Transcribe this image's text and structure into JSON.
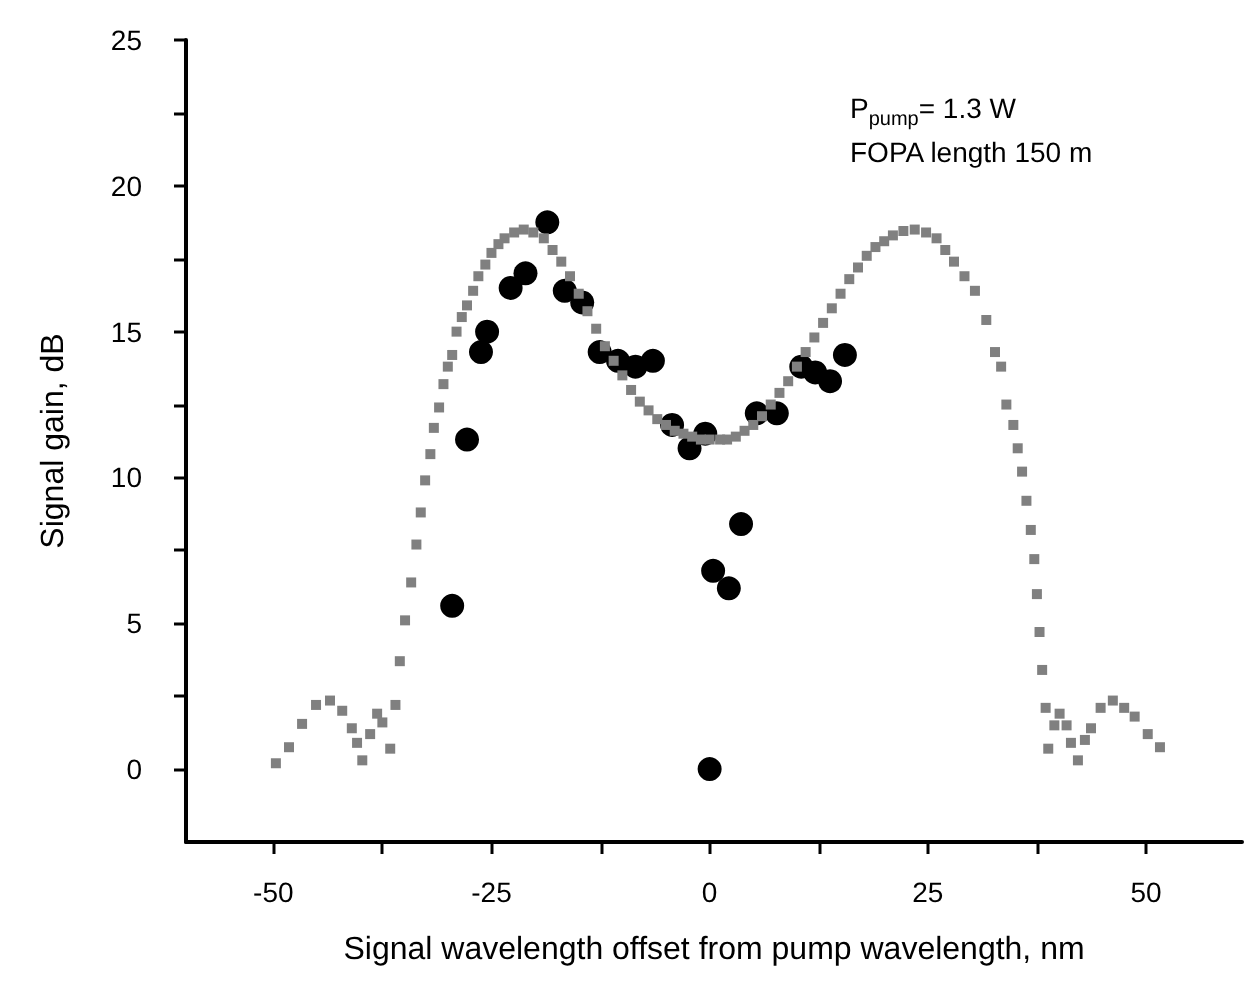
{
  "chart_data": {
    "type": "scatter",
    "xlabel": "Signal wavelength offset from pump wavelength, nm",
    "ylabel": "Signal gain, dB",
    "annotations": [
      "P$_{pump}$= 1.3 W",
      "FOPA length 150 m"
    ],
    "xlim": [
      -60,
      61
    ],
    "ylim": [
      -2.5,
      25
    ],
    "xticks": [
      -50,
      {
        "value": -37.5,
        "label": null
      },
      -25,
      {
        "value": -12.5,
        "label": null
      },
      0,
      {
        "value": 12.5,
        "label": null
      },
      25,
      {
        "value": 37.5,
        "label": null
      },
      50
    ],
    "yticks": [
      0,
      {
        "value": 2.5,
        "label": null
      },
      5,
      {
        "value": 7.5,
        "label": null
      },
      10,
      {
        "value": 12.5,
        "label": null
      },
      15,
      {
        "value": 17.5,
        "label": null
      },
      20,
      {
        "value": 22.5,
        "label": null
      },
      25
    ],
    "grid": false,
    "series": [
      {
        "color": "#808080",
        "marker": "square",
        "x": [
          -49.7,
          -48.2,
          -46.7,
          -45.1,
          -43.5,
          -42.1,
          -41.0,
          -40.4,
          -39.8,
          -38.9,
          -38.1,
          -37.5,
          -36.6,
          -36.0,
          -35.5,
          -34.9,
          -34.2,
          -33.6,
          -33.1,
          -32.6,
          -32.0,
          -31.6,
          -31.0,
          -30.5,
          -30.0,
          -29.5,
          -29.0,
          -28.4,
          -27.8,
          -27.1,
          -26.5,
          -25.7,
          -25.0,
          -24.2,
          -23.5,
          -22.4,
          -21.3,
          -20.2,
          -19.0,
          -18.0,
          -17.0,
          -16.0,
          -15.0,
          -14.0,
          -13.0,
          -12.0,
          -11.0,
          -10.0,
          -9.0,
          -8.0,
          -7.0,
          -6.0,
          -5.0,
          -4.0,
          -3.0,
          -2.0,
          -1.0,
          0.0,
          1.2,
          2.0,
          3.0,
          4.0,
          5.0,
          6.0,
          7.0,
          8.0,
          9.0,
          10.0,
          11.0,
          12.0,
          13.0,
          14.0,
          15.0,
          16.0,
          17.0,
          18.0,
          19.0,
          20.0,
          21.0,
          22.2,
          23.5,
          24.8,
          26.0,
          27.0,
          28.0,
          29.2,
          30.4,
          31.7,
          32.7,
          33.4,
          34.0,
          34.8,
          35.3,
          35.8,
          36.3,
          36.8,
          37.2,
          37.5,
          37.8,
          38.1,
          38.5,
          38.8,
          39.5,
          40.1,
          40.9,
          41.4,
          42.2,
          43.0,
          43.7,
          44.8,
          46.2,
          47.5,
          48.7,
          50.2,
          51.6
        ],
        "values": [
          0.2,
          0.75,
          1.55,
          2.2,
          2.35,
          2.0,
          1.4,
          0.9,
          0.3,
          1.2,
          1.9,
          1.6,
          0.7,
          2.2,
          3.7,
          5.1,
          6.4,
          7.7,
          8.8,
          9.9,
          10.8,
          11.7,
          12.4,
          13.2,
          13.8,
          14.2,
          15.0,
          15.5,
          15.9,
          16.4,
          16.9,
          17.3,
          17.7,
          18.0,
          18.2,
          18.4,
          18.5,
          18.4,
          18.2,
          17.8,
          17.4,
          16.9,
          16.3,
          15.7,
          15.1,
          14.5,
          14.0,
          13.5,
          13.0,
          12.6,
          12.3,
          12.0,
          11.8,
          11.6,
          11.5,
          11.4,
          11.3,
          11.3,
          11.3,
          11.3,
          11.4,
          11.6,
          11.8,
          12.1,
          12.5,
          12.9,
          13.3,
          13.8,
          14.3,
          14.8,
          15.3,
          15.8,
          16.3,
          16.8,
          17.2,
          17.6,
          17.9,
          18.1,
          18.3,
          18.45,
          18.5,
          18.4,
          18.2,
          17.8,
          17.4,
          16.9,
          16.4,
          15.4,
          14.3,
          13.8,
          12.5,
          11.8,
          11.0,
          10.2,
          9.2,
          8.2,
          7.2,
          6.0,
          4.7,
          3.4,
          2.1,
          0.7,
          1.5,
          1.9,
          1.5,
          0.9,
          0.3,
          1.0,
          1.4,
          2.1,
          2.35,
          2.1,
          1.8,
          1.2,
          0.75
        ]
      },
      {
        "color": "#000000",
        "marker": "circle",
        "x": [
          -29.5,
          -27.8,
          -26.2,
          -25.5,
          -22.8,
          -21.1,
          -18.6,
          -16.6,
          -14.6,
          -12.6,
          -10.5,
          -8.5,
          -6.5,
          -4.3,
          -2.3,
          -0.5,
          0.0,
          0.4,
          2.2,
          3.6,
          5.4,
          7.7,
          10.5,
          12.1,
          13.8,
          15.5
        ],
        "values": [
          5.6,
          11.3,
          14.3,
          15.0,
          16.5,
          17.0,
          18.75,
          16.4,
          16.0,
          14.3,
          14.0,
          13.8,
          14.0,
          11.8,
          11.0,
          11.5,
          0.0,
          6.8,
          6.2,
          8.4,
          12.2,
          12.2,
          13.8,
          13.6,
          13.3,
          14.2
        ]
      }
    ]
  }
}
